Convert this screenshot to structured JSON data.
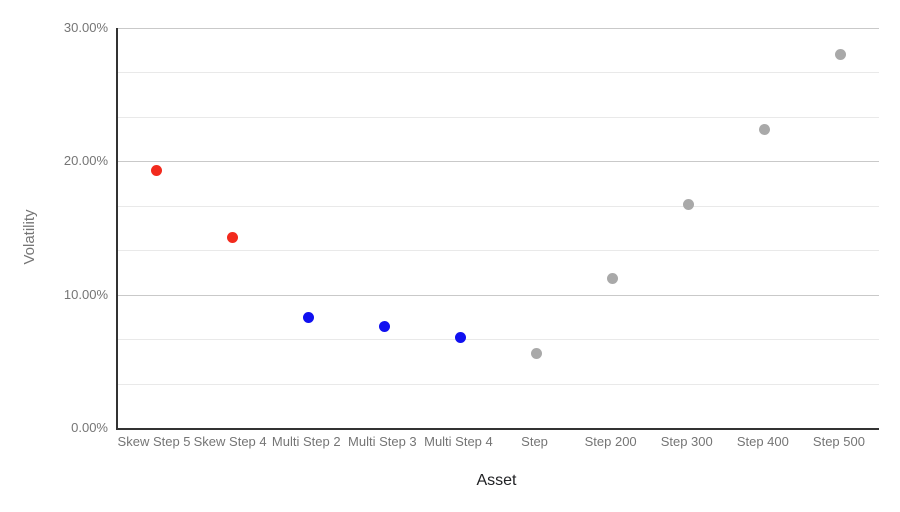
{
  "chart_data": {
    "type": "scatter",
    "title": "",
    "xlabel": "Asset",
    "ylabel": "Volatility",
    "ylim_percent": [
      0,
      30
    ],
    "grid": true,
    "legend": "none",
    "minor_gridlines_between_major": 2,
    "y_ticks": [
      {
        "label": "0.00%",
        "value": 0
      },
      {
        "label": "10.00%",
        "value": 10
      },
      {
        "label": "20.00%",
        "value": 20
      },
      {
        "label": "30.00%",
        "value": 30
      }
    ],
    "categories": [
      "Skew Step 5",
      "Skew Step 4",
      "Multi Step 2",
      "Multi Step 3",
      "Multi Step 4",
      "Step",
      "Step 200",
      "Step 300",
      "Step 400",
      "Step 500"
    ],
    "points": [
      {
        "category": "Skew Step 5",
        "volatility_percent": 19.3,
        "color": "#f22a1d"
      },
      {
        "category": "Skew Step 4",
        "volatility_percent": 14.3,
        "color": "#f22a1d"
      },
      {
        "category": "Multi Step 2",
        "volatility_percent": 8.3,
        "color": "#1010f0"
      },
      {
        "category": "Multi Step 3",
        "volatility_percent": 7.6,
        "color": "#1010f0"
      },
      {
        "category": "Multi Step 4",
        "volatility_percent": 6.8,
        "color": "#1010f0"
      },
      {
        "category": "Step",
        "volatility_percent": 5.6,
        "color": "#a9a9a9"
      },
      {
        "category": "Step 200",
        "volatility_percent": 11.2,
        "color": "#a9a9a9"
      },
      {
        "category": "Step 300",
        "volatility_percent": 16.8,
        "color": "#a9a9a9"
      },
      {
        "category": "Step 400",
        "volatility_percent": 22.4,
        "color": "#a9a9a9"
      },
      {
        "category": "Step 500",
        "volatility_percent": 28.0,
        "color": "#a9a9a9"
      }
    ]
  },
  "colors": {
    "background": "#ffffff",
    "axis_line": "#333333",
    "major_gridline": "#c9c9c9",
    "minor_gridline": "#e9e9e9",
    "tick_label": "#757575",
    "y_axis_title": "#757575",
    "x_axis_title": "#202124",
    "point_red": "#f22a1d",
    "point_blue": "#1010f0",
    "point_gray": "#a9a9a9"
  }
}
